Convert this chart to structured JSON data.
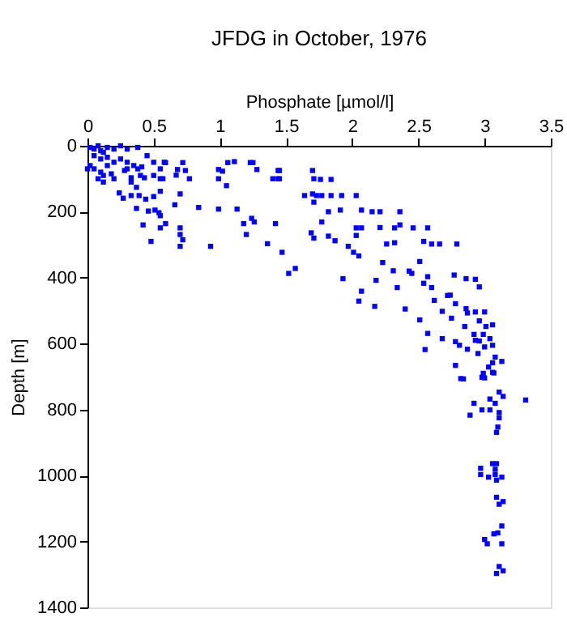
{
  "chart_data": {
    "type": "scatter",
    "title": "JFDG in October, 1976",
    "xlabel": "Phosphate [µmol/l]",
    "ylabel": "Depth [m]",
    "xlim": [
      0,
      3.5
    ],
    "xticks": [
      0,
      0.5,
      1,
      1.5,
      2,
      2.5,
      3,
      3.5
    ],
    "ylim": [
      1400,
      0
    ],
    "yticks": [
      0,
      200,
      400,
      600,
      800,
      1000,
      1200,
      1400
    ],
    "grid": false,
    "marker": "square",
    "series": [
      {
        "color": "#0000ff",
        "x": [
          0.02,
          0.05,
          0.08,
          0.1,
          0.12,
          0.15,
          0.2,
          0.25,
          0.3,
          0.38,
          0.05,
          0.1,
          0.15,
          0.02,
          0.0,
          0.05,
          0.1,
          0.15,
          0.2,
          0.25,
          0.3,
          0.08,
          0.12,
          0.18,
          0.12,
          0.2,
          0.28,
          0.3,
          0.35,
          0.4,
          0.38,
          0.45,
          0.5,
          0.55,
          0.58,
          0.5,
          0.55,
          0.24,
          0.27,
          0.33,
          0.33,
          0.37,
          0.33,
          0.39,
          0.41,
          0.43,
          0.44,
          0.37,
          0.42,
          0.46,
          0.48,
          0.5,
          0.51,
          0.54,
          0.55,
          0.55,
          0.55,
          0.57,
          0.59,
          0.59,
          0.68,
          0.67,
          0.66,
          0.7,
          0.7,
          0.7,
          0.72,
          0.7,
          0.72,
          0.74,
          0.77,
          0.84,
          0.93,
          0.99,
          0.99,
          1.02,
          0.99,
          1.05,
          1.06,
          1.11,
          1.13,
          1.18,
          1.2,
          1.23,
          1.25,
          1.24,
          1.26,
          1.28,
          1.36,
          1.4,
          1.42,
          1.44,
          1.44,
          1.47,
          1.52,
          1.45,
          1.45,
          1.7,
          1.71,
          1.76,
          1.84,
          1.64,
          1.7,
          1.71,
          1.73,
          1.77,
          1.84,
          1.92,
          2.03,
          1.57,
          1.82,
          1.91,
          2.07,
          2.15,
          2.21,
          2.36,
          1.77,
          1.69,
          1.71,
          1.82,
          1.87,
          1.97,
          2.01,
          2.05,
          2.03,
          2.07,
          2.03,
          2.21,
          2.32,
          2.36,
          2.46,
          2.57,
          2.26,
          2.32,
          2.54,
          2.6,
          2.66,
          2.79,
          1.93,
          2.07,
          2.05,
          2.17,
          2.18,
          2.23,
          2.31,
          2.34,
          2.43,
          2.45,
          2.51,
          2.54,
          2.57,
          2.6,
          2.62,
          2.68,
          2.72,
          2.74,
          2.75,
          2.78,
          2.77,
          2.86,
          2.93,
          2.96,
          2.86,
          2.87,
          2.93,
          3.0,
          2.96,
          2.4,
          2.51,
          2.57,
          2.55,
          2.68,
          2.78,
          2.81,
          2.85,
          2.92,
          2.93,
          2.96,
          2.99,
          3.01,
          3.06,
          3.04,
          3.06,
          3.0,
          2.95,
          2.87,
          3.08,
          3.13,
          3.06,
          3.03,
          2.78,
          2.84,
          2.99,
          3.0,
          3.06,
          2.82,
          2.98,
          3.07,
          3.11,
          3.14,
          3.31,
          3.04,
          3.08,
          2.92,
          2.98,
          3.04,
          2.89,
          3.11,
          3.11,
          3.1,
          3.09,
          3.09,
          3.06,
          2.97,
          3.08,
          3.08,
          2.97,
          3.03,
          3.13,
          3.09,
          3.09,
          3.14,
          3.11,
          3.13,
          3.1,
          3.07,
          3.0,
          3.02,
          3.13,
          3.11,
          3.14,
          3.09
        ],
        "values": [
          5,
          10,
          0,
          15,
          20,
          5,
          10,
          0,
          10,
          5,
          30,
          40,
          35,
          60,
          70,
          70,
          80,
          60,
          50,
          40,
          50,
          100,
          90,
          85,
          110,
          100,
          75,
          70,
          60,
          90,
          70,
          30,
          90,
          100,
          50,
          50,
          70,
          143,
          159,
          97,
          110,
          126,
          151,
          151,
          64,
          97,
          162,
          190,
          240,
          198,
          290,
          154,
          195,
          203,
          212,
          249,
          138,
          100,
          236,
          51,
          72,
          89,
          179,
          146,
          249,
          269,
          285,
          305,
          51,
          75,
          100,
          187,
          305,
          192,
          72,
          77,
          100,
          121,
          51,
          48,
          192,
          236,
          269,
          51,
          51,
          220,
          231,
          72,
          297,
          100,
          236,
          75,
          100,
          323,
          387,
          75,
          100,
          75,
          100,
          102,
          102,
          151,
          146,
          171,
          151,
          151,
          151,
          151,
          151,
          372,
          200,
          195,
          195,
          200,
          200,
          200,
          231,
          264,
          280,
          274,
          288,
          305,
          323,
          334,
          249,
          249,
          272,
          248,
          249,
          240,
          249,
          249,
          298,
          294,
          290,
          298,
          298,
          298,
          403,
          441,
          471,
          487,
          408,
          354,
          379,
          430,
          380,
          387,
          351,
          417,
          397,
          430,
          469,
          502,
          454,
          453,
          523,
          479,
          392,
          403,
          405,
          428,
          494,
          507,
          504,
          504,
          531,
          495,
          528,
          569,
          618,
          585,
          594,
          605,
          548,
          572,
          590,
          592,
          572,
          548,
          543,
          585,
          605,
          610,
          630,
          617,
          641,
          654,
          658,
          671,
          666,
          707,
          690,
          704,
          687,
          706,
          702,
          689,
          747,
          760,
          771,
          768,
          781,
          781,
          801,
          801,
          817,
          809,
          825,
          853,
          869,
          964,
          964,
          978,
          981,
          997,
          997,
          1005,
          1005,
          1014,
          1066,
          1079,
          1087,
          1153,
          1174,
          1177,
          1194,
          1207,
          1207,
          1276,
          1289,
          1297
        ]
      }
    ]
  }
}
